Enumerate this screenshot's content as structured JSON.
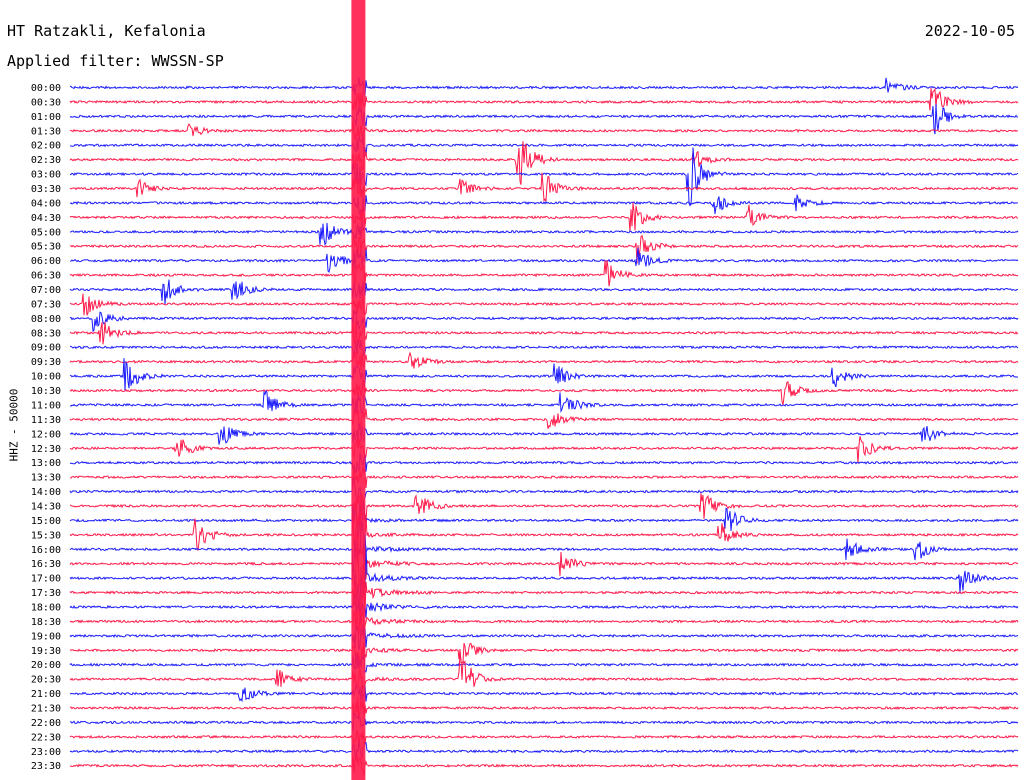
{
  "header": {
    "station": "HT Ratzakli, Kefalonia",
    "filter": "Applied filter: WWSSN-SP",
    "date": "2022-10-05"
  },
  "colors": {
    "blue": "#1a1aff",
    "red": "#ff1a4a"
  },
  "chart_data": {
    "type": "helicorder",
    "ylabel": "HHZ - 50000",
    "row_labels": [
      "00:00",
      "00:30",
      "01:00",
      "01:30",
      "02:00",
      "02:30",
      "03:00",
      "03:30",
      "04:00",
      "04:30",
      "05:00",
      "05:30",
      "06:00",
      "06:30",
      "07:00",
      "07:30",
      "08:00",
      "08:30",
      "09:00",
      "09:30",
      "10:00",
      "10:30",
      "11:00",
      "11:30",
      "12:00",
      "12:30",
      "13:00",
      "13:30",
      "14:00",
      "14:30",
      "15:00",
      "15:30",
      "16:00",
      "16:30",
      "17:00",
      "17:30",
      "18:00",
      "18:30",
      "19:00",
      "19:30",
      "20:00",
      "20:30",
      "21:00",
      "21:30",
      "22:00",
      "22:30",
      "23:00",
      "23:30"
    ],
    "row_minutes": 30,
    "series": [
      {
        "color": "#1a1aff",
        "rows": "even (00:00, 01:00, ...)"
      },
      {
        "color": "#ff1a4a",
        "rows": "odd (00:30, 01:30, ...)"
      }
    ],
    "events": [
      {
        "row": 0,
        "minute": 25.9,
        "amplitude": 0.6
      },
      {
        "row": 1,
        "minute": 27.3,
        "amplitude": 1.6
      },
      {
        "row": 2,
        "minute": 27.4,
        "amplitude": 1.2
      },
      {
        "row": 3,
        "minute": 3.8,
        "amplitude": 0.5
      },
      {
        "row": 5,
        "minute": 14.2,
        "amplitude": 2.6
      },
      {
        "row": 5,
        "minute": 19.8,
        "amplitude": 0.6
      },
      {
        "row": 6,
        "minute": 19.6,
        "amplitude": 2.6
      },
      {
        "row": 7,
        "minute": 2.2,
        "amplitude": 0.6
      },
      {
        "row": 7,
        "minute": 12.4,
        "amplitude": 0.6
      },
      {
        "row": 7,
        "minute": 15.0,
        "amplitude": 1.2
      },
      {
        "row": 8,
        "minute": 20.4,
        "amplitude": 0.8
      },
      {
        "row": 8,
        "minute": 23.0,
        "amplitude": 0.6
      },
      {
        "row": 9,
        "minute": 17.8,
        "amplitude": 1.1
      },
      {
        "row": 9,
        "minute": 21.5,
        "amplitude": 0.8
      },
      {
        "row": 10,
        "minute": 8.0,
        "amplitude": 1.0
      },
      {
        "row": 11,
        "minute": 18.0,
        "amplitude": 1.2
      },
      {
        "row": 12,
        "minute": 8.2,
        "amplitude": 1.0
      },
      {
        "row": 12,
        "minute": 18.0,
        "amplitude": 0.9
      },
      {
        "row": 13,
        "minute": 17.0,
        "amplitude": 1.0
      },
      {
        "row": 14,
        "minute": 3.0,
        "amplitude": 1.0
      },
      {
        "row": 14,
        "minute": 5.2,
        "amplitude": 1.0
      },
      {
        "row": 15,
        "minute": 0.5,
        "amplitude": 0.8
      },
      {
        "row": 16,
        "minute": 0.8,
        "amplitude": 0.9
      },
      {
        "row": 17,
        "minute": 1.0,
        "amplitude": 1.0
      },
      {
        "row": 19,
        "minute": 10.8,
        "amplitude": 0.8
      },
      {
        "row": 20,
        "minute": 1.8,
        "amplitude": 1.2
      },
      {
        "row": 20,
        "minute": 15.4,
        "amplitude": 0.8
      },
      {
        "row": 20,
        "minute": 24.2,
        "amplitude": 0.8
      },
      {
        "row": 21,
        "minute": 22.6,
        "amplitude": 1.0
      },
      {
        "row": 22,
        "minute": 6.2,
        "amplitude": 1.0
      },
      {
        "row": 22,
        "minute": 15.6,
        "amplitude": 1.0
      },
      {
        "row": 23,
        "minute": 15.2,
        "amplitude": 0.8
      },
      {
        "row": 24,
        "minute": 4.8,
        "amplitude": 1.0
      },
      {
        "row": 24,
        "minute": 27.0,
        "amplitude": 0.8
      },
      {
        "row": 25,
        "minute": 3.4,
        "amplitude": 1.0
      },
      {
        "row": 25,
        "minute": 25.0,
        "amplitude": 1.0
      },
      {
        "row": 29,
        "minute": 11.0,
        "amplitude": 1.0
      },
      {
        "row": 29,
        "minute": 20.0,
        "amplitude": 1.2
      },
      {
        "row": 30,
        "minute": 20.8,
        "amplitude": 1.0
      },
      {
        "row": 31,
        "minute": 4.0,
        "amplitude": 1.2
      },
      {
        "row": 31,
        "minute": 20.6,
        "amplitude": 0.9
      },
      {
        "row": 32,
        "minute": 24.6,
        "amplitude": 1.0
      },
      {
        "row": 32,
        "minute": 26.8,
        "amplitude": 1.0
      },
      {
        "row": 33,
        "minute": 15.6,
        "amplitude": 0.8
      },
      {
        "row": 34,
        "minute": 28.2,
        "amplitude": 1.0
      },
      {
        "row": 39,
        "minute": 12.4,
        "amplitude": 1.0
      },
      {
        "row": 41,
        "minute": 6.6,
        "amplitude": 0.9
      },
      {
        "row": 41,
        "minute": 12.4,
        "amplitude": 1.8
      },
      {
        "row": 42,
        "minute": 5.4,
        "amplitude": 0.8
      }
    ],
    "large_event": {
      "start_row": 0,
      "start_minute": 9.0,
      "end_row": 47,
      "peak_row": 35
    }
  }
}
